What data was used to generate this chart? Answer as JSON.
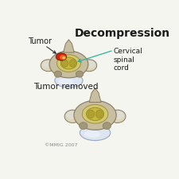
{
  "title": "Decompression",
  "label_tumor": "Tumor",
  "label_cervical": "Cervical\nspinal\ncord",
  "label_removed": "Tumor removed",
  "label_copyright": "©MMIG 2007",
  "bg_color": "#f5f5f0",
  "bone_color": "#c8bfa0",
  "bone_dark": "#a09878",
  "bone_light": "#ddd5b8",
  "bone_edge": "#887860",
  "lateral_color": "#b8ae90",
  "canal_bg": "#d4c870",
  "canal_edge": "#a09040",
  "cord_color": "#c8b840",
  "cord_edge": "#908820",
  "cord_inner": "#b0a030",
  "disc_color": "#dde5f0",
  "disc_edge": "#9aa8c0",
  "disc_shine": "#eef2fa",
  "tumor_red": "#d02010",
  "tumor_orange": "#e86820",
  "tumor_yellow": "#f0d030",
  "arrow_teal": "#30b0a0",
  "text_dark": "#1a1a1a",
  "text_gray": "#888888",
  "title_fs": 10,
  "label_fs": 7,
  "copy_fs": 4.5
}
